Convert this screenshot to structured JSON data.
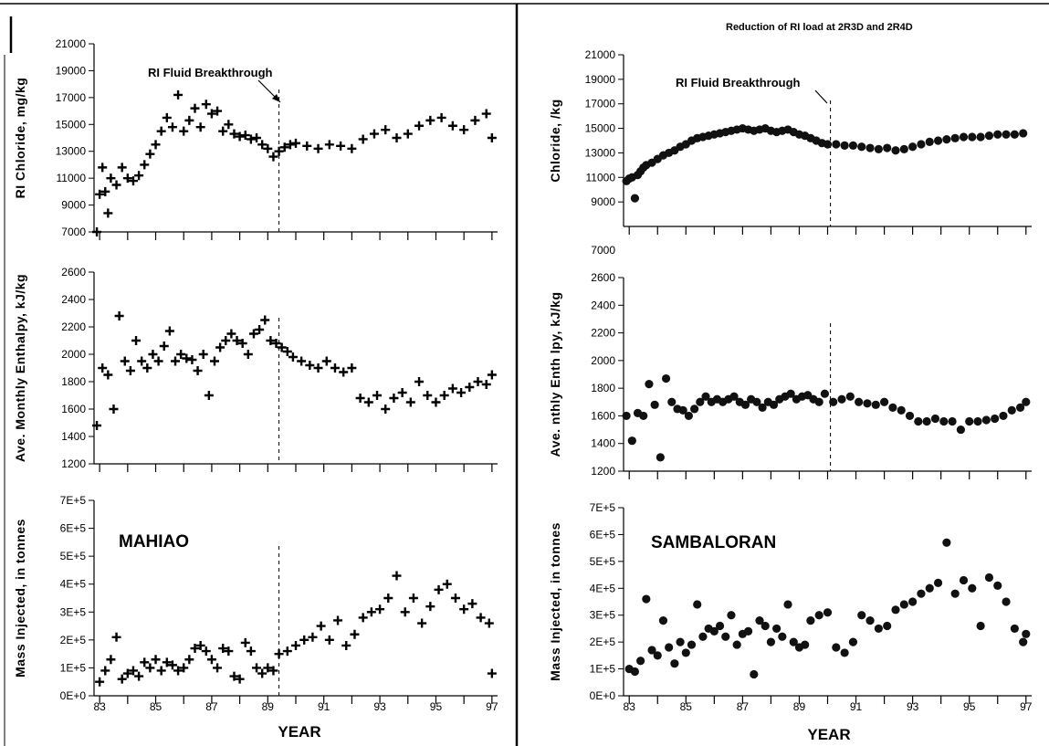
{
  "figure": {
    "panels": [
      {
        "name": "left",
        "site_label": "MAHIAO",
        "annotation": "RI Fluid Breakthrough",
        "top_note": ""
      },
      {
        "name": "right",
        "site_label": "SAMBALORAN",
        "annotation": "RI Fluid Breakthrough",
        "top_note": "Reduction of RI load at 2R3D and 2R4D"
      }
    ]
  },
  "chart_data": [
    {
      "type": "scatter",
      "panel": "left",
      "row": "chloride",
      "ylabel": "RI Chloride, mg/kg",
      "ylim": [
        7000,
        21000
      ],
      "yticks": [
        7000,
        9000,
        11000,
        13000,
        15000,
        17000,
        19000,
        21000
      ],
      "xlim": [
        82.8,
        97.2
      ],
      "marker": "plus",
      "breakthrough_x": 89.4,
      "series": [
        {
          "x": [
            82.9,
            83.0,
            83.1,
            83.2,
            83.3,
            83.4,
            83.6,
            83.8,
            84.0,
            84.2,
            84.4,
            84.6,
            84.8,
            85.0,
            85.2,
            85.4,
            85.6,
            85.8,
            86.0,
            86.2,
            86.4,
            86.6,
            86.8,
            87.0,
            87.2,
            87.4,
            87.6,
            87.8,
            88.0,
            88.2,
            88.4,
            88.6,
            88.8,
            89.0,
            89.2,
            89.4,
            89.6,
            89.8,
            90.0,
            90.4,
            90.8,
            91.2,
            91.6,
            92.0,
            92.4,
            92.8,
            93.2,
            93.6,
            94.0,
            94.4,
            94.8,
            95.2,
            95.6,
            96.0,
            96.4,
            96.8,
            97.0
          ],
          "y": [
            7000,
            9800,
            11800,
            10000,
            8400,
            11000,
            10500,
            11800,
            11000,
            10800,
            11200,
            12000,
            12800,
            13500,
            14500,
            15500,
            14800,
            17200,
            14500,
            15300,
            16200,
            14800,
            16500,
            15800,
            16000,
            14500,
            15000,
            14300,
            14100,
            14200,
            13900,
            14000,
            13500,
            13200,
            12600,
            13000,
            13300,
            13500,
            13600,
            13400,
            13200,
            13500,
            13400,
            13200,
            13900,
            14300,
            14600,
            14000,
            14300,
            14900,
            15300,
            15500,
            14900,
            14600,
            15300,
            15800,
            14000
          ]
        }
      ]
    },
    {
      "type": "scatter",
      "panel": "left",
      "row": "enthalpy",
      "ylabel": "Ave. Monthly Enthalpy, kJ/kg",
      "ylim": [
        1200,
        2600
      ],
      "yticks": [
        1200,
        1400,
        1600,
        1800,
        2000,
        2200,
        2400,
        2600
      ],
      "xlim": [
        82.8,
        97.2
      ],
      "marker": "plus",
      "breakthrough_x": 89.4,
      "series": [
        {
          "x": [
            82.9,
            83.1,
            83.3,
            83.5,
            83.7,
            83.9,
            84.1,
            84.3,
            84.5,
            84.7,
            84.9,
            85.1,
            85.3,
            85.5,
            85.7,
            85.9,
            86.1,
            86.3,
            86.5,
            86.7,
            86.9,
            87.1,
            87.3,
            87.5,
            87.7,
            87.9,
            88.1,
            88.3,
            88.5,
            88.7,
            88.9,
            89.1,
            89.3,
            89.5,
            89.7,
            89.9,
            90.2,
            90.5,
            90.8,
            91.1,
            91.4,
            91.7,
            92.0,
            92.3,
            92.6,
            92.9,
            93.2,
            93.5,
            93.8,
            94.1,
            94.4,
            94.7,
            95.0,
            95.3,
            95.6,
            95.9,
            96.2,
            96.5,
            96.8,
            97.0
          ],
          "y": [
            1480,
            1900,
            1850,
            1600,
            2280,
            1950,
            1880,
            2100,
            1950,
            1900,
            2000,
            1950,
            2060,
            2170,
            1950,
            2000,
            1970,
            1960,
            1880,
            2000,
            1700,
            1950,
            2050,
            2100,
            2150,
            2100,
            2080,
            2000,
            2150,
            2180,
            2250,
            2100,
            2080,
            2050,
            2020,
            1980,
            1950,
            1920,
            1900,
            1950,
            1900,
            1870,
            1900,
            1680,
            1650,
            1700,
            1600,
            1680,
            1720,
            1650,
            1800,
            1700,
            1650,
            1700,
            1750,
            1720,
            1760,
            1800,
            1780,
            1850
          ]
        }
      ]
    },
    {
      "type": "scatter",
      "panel": "left",
      "row": "mass",
      "ylabel": "Mass Injected, in tonnes",
      "ylim": [
        0,
        700000
      ],
      "yticks": [
        0,
        100000,
        200000,
        300000,
        400000,
        500000,
        600000,
        700000
      ],
      "ytick_labels": [
        "0E+0",
        "1E+5",
        "2E+5",
        "3E+5",
        "4E+5",
        "5E+5",
        "6E+5",
        "7E+5"
      ],
      "xlim": [
        82.8,
        97.2
      ],
      "marker": "plus",
      "breakthrough_x": 89.4,
      "xticks": [
        83,
        85,
        87,
        89,
        91,
        93,
        95,
        97
      ],
      "xlabel": "YEAR",
      "series": [
        {
          "x": [
            83.0,
            83.2,
            83.4,
            83.6,
            83.8,
            84.0,
            84.2,
            84.4,
            84.6,
            84.8,
            85.0,
            85.2,
            85.4,
            85.6,
            85.8,
            86.0,
            86.2,
            86.4,
            86.6,
            86.8,
            87.0,
            87.2,
            87.4,
            87.6,
            87.8,
            88.0,
            88.2,
            88.4,
            88.6,
            88.8,
            89.0,
            89.2,
            89.4,
            89.7,
            90.0,
            90.3,
            90.6,
            90.9,
            91.2,
            91.5,
            91.8,
            92.1,
            92.4,
            92.7,
            93.0,
            93.3,
            93.6,
            93.9,
            94.2,
            94.5,
            94.8,
            95.1,
            95.4,
            95.7,
            96.0,
            96.3,
            96.6,
            96.9,
            97.0
          ],
          "y": [
            50000,
            90000,
            130000,
            210000,
            60000,
            80000,
            90000,
            70000,
            120000,
            100000,
            130000,
            90000,
            120000,
            110000,
            90000,
            100000,
            130000,
            170000,
            180000,
            160000,
            130000,
            100000,
            170000,
            160000,
            70000,
            60000,
            190000,
            160000,
            100000,
            80000,
            100000,
            90000,
            150000,
            160000,
            180000,
            200000,
            210000,
            250000,
            200000,
            270000,
            180000,
            220000,
            280000,
            300000,
            310000,
            350000,
            430000,
            300000,
            350000,
            260000,
            320000,
            380000,
            400000,
            350000,
            310000,
            330000,
            280000,
            260000,
            80000
          ]
        }
      ]
    },
    {
      "type": "scatter",
      "panel": "right",
      "row": "chloride",
      "ylabel": "Chloride, /kg",
      "ylim": [
        7000,
        21000
      ],
      "yticks": [
        9000,
        11000,
        13000,
        15000,
        17000,
        19000,
        21000
      ],
      "ytick_labels": [
        "9000",
        "11000",
        "13000",
        "15000",
        "17000",
        "19000",
        "21000"
      ],
      "ylim_bottom_label": "7000",
      "xlim": [
        82.8,
        97.2
      ],
      "marker": "dot",
      "breakthrough_x": 90.1,
      "series": [
        {
          "x": [
            82.9,
            83.0,
            83.1,
            83.2,
            83.3,
            83.4,
            83.5,
            83.6,
            83.8,
            84.0,
            84.2,
            84.4,
            84.6,
            84.8,
            85.0,
            85.2,
            85.4,
            85.6,
            85.8,
            86.0,
            86.2,
            86.4,
            86.6,
            86.8,
            87.0,
            87.2,
            87.4,
            87.6,
            87.8,
            88.0,
            88.2,
            88.4,
            88.6,
            88.8,
            89.0,
            89.2,
            89.4,
            89.6,
            89.8,
            90.0,
            90.3,
            90.6,
            90.9,
            91.2,
            91.5,
            91.8,
            92.1,
            92.4,
            92.7,
            93.0,
            93.3,
            93.6,
            93.9,
            94.2,
            94.5,
            94.8,
            95.1,
            95.4,
            95.7,
            96.0,
            96.3,
            96.6,
            96.9
          ],
          "y": [
            10700,
            10900,
            11000,
            9300,
            11200,
            11500,
            11800,
            12000,
            12200,
            12500,
            12800,
            13000,
            13200,
            13500,
            13700,
            14000,
            14200,
            14300,
            14400,
            14500,
            14600,
            14700,
            14800,
            14900,
            15000,
            14900,
            14800,
            14900,
            15000,
            14800,
            14700,
            14800,
            14900,
            14700,
            14500,
            14400,
            14200,
            14000,
            13800,
            13700,
            13700,
            13600,
            13600,
            13500,
            13400,
            13300,
            13400,
            13200,
            13300,
            13500,
            13700,
            13900,
            14000,
            14100,
            14200,
            14300,
            14300,
            14300,
            14400,
            14500,
            14500,
            14500,
            14600
          ]
        }
      ]
    },
    {
      "type": "scatter",
      "panel": "right",
      "row": "enthalpy",
      "ylabel": "Ave. nthly Enth lpy, kJ/kg",
      "ylim": [
        1200,
        2600
      ],
      "yticks": [
        1200,
        1400,
        1600,
        1800,
        2000,
        2200,
        2400,
        2600
      ],
      "xlim": [
        82.8,
        97.2
      ],
      "marker": "dot",
      "breakthrough_x": 90.1,
      "series": [
        {
          "x": [
            82.9,
            83.1,
            83.3,
            83.5,
            83.7,
            83.9,
            84.1,
            84.3,
            84.5,
            84.7,
            84.9,
            85.1,
            85.3,
            85.5,
            85.7,
            85.9,
            86.1,
            86.3,
            86.5,
            86.7,
            86.9,
            87.1,
            87.3,
            87.5,
            87.7,
            87.9,
            88.1,
            88.3,
            88.5,
            88.7,
            88.9,
            89.1,
            89.3,
            89.5,
            89.7,
            89.9,
            90.2,
            90.5,
            90.8,
            91.1,
            91.4,
            91.7,
            92.0,
            92.3,
            92.6,
            92.9,
            93.2,
            93.5,
            93.8,
            94.1,
            94.4,
            94.7,
            95.0,
            95.3,
            95.6,
            95.9,
            96.2,
            96.5,
            96.8,
            97.0
          ],
          "y": [
            1600,
            1420,
            1620,
            1600,
            1830,
            1680,
            1300,
            1870,
            1700,
            1650,
            1640,
            1600,
            1650,
            1700,
            1740,
            1700,
            1720,
            1700,
            1720,
            1740,
            1700,
            1680,
            1720,
            1700,
            1660,
            1700,
            1680,
            1720,
            1740,
            1760,
            1720,
            1740,
            1750,
            1720,
            1700,
            1760,
            1700,
            1720,
            1740,
            1700,
            1690,
            1680,
            1700,
            1660,
            1640,
            1600,
            1560,
            1560,
            1580,
            1560,
            1560,
            1500,
            1560,
            1560,
            1570,
            1580,
            1600,
            1640,
            1660,
            1700
          ]
        }
      ]
    },
    {
      "type": "scatter",
      "panel": "right",
      "row": "mass",
      "ylabel": "Mass Injected, in tonnes",
      "ylim": [
        0,
        700000
      ],
      "yticks": [
        0,
        100000,
        200000,
        300000,
        400000,
        500000,
        600000,
        700000
      ],
      "ytick_labels": [
        "0E+0",
        "1E+5",
        "2E+5",
        "3E+5",
        "4E+5",
        "5E+5",
        "6E+5",
        "7E+5"
      ],
      "xlim": [
        82.8,
        97.2
      ],
      "marker": "dot",
      "xticks": [
        83,
        85,
        87,
        89,
        91,
        93,
        95,
        97
      ],
      "xlabel": "YEAR",
      "series": [
        {
          "x": [
            83.0,
            83.2,
            83.4,
            83.6,
            83.8,
            84.0,
            84.2,
            84.4,
            84.6,
            84.8,
            85.0,
            85.2,
            85.4,
            85.6,
            85.8,
            86.0,
            86.2,
            86.4,
            86.6,
            86.8,
            87.0,
            87.2,
            87.4,
            87.6,
            87.8,
            88.0,
            88.2,
            88.4,
            88.6,
            88.8,
            89.0,
            89.2,
            89.4,
            89.7,
            90.0,
            90.3,
            90.6,
            90.9,
            91.2,
            91.5,
            91.8,
            92.1,
            92.4,
            92.7,
            93.0,
            93.3,
            93.6,
            93.9,
            94.2,
            94.5,
            94.8,
            95.1,
            95.4,
            95.7,
            96.0,
            96.3,
            96.6,
            96.9,
            97.0
          ],
          "y": [
            100000,
            90000,
            130000,
            360000,
            170000,
            150000,
            280000,
            180000,
            120000,
            200000,
            160000,
            190000,
            340000,
            220000,
            250000,
            240000,
            260000,
            220000,
            300000,
            190000,
            230000,
            240000,
            80000,
            280000,
            260000,
            200000,
            250000,
            220000,
            340000,
            200000,
            180000,
            190000,
            280000,
            300000,
            310000,
            180000,
            160000,
            200000,
            300000,
            280000,
            250000,
            260000,
            320000,
            340000,
            350000,
            380000,
            400000,
            420000,
            570000,
            380000,
            430000,
            400000,
            260000,
            440000,
            410000,
            350000,
            250000,
            200000,
            230000
          ]
        }
      ]
    }
  ]
}
